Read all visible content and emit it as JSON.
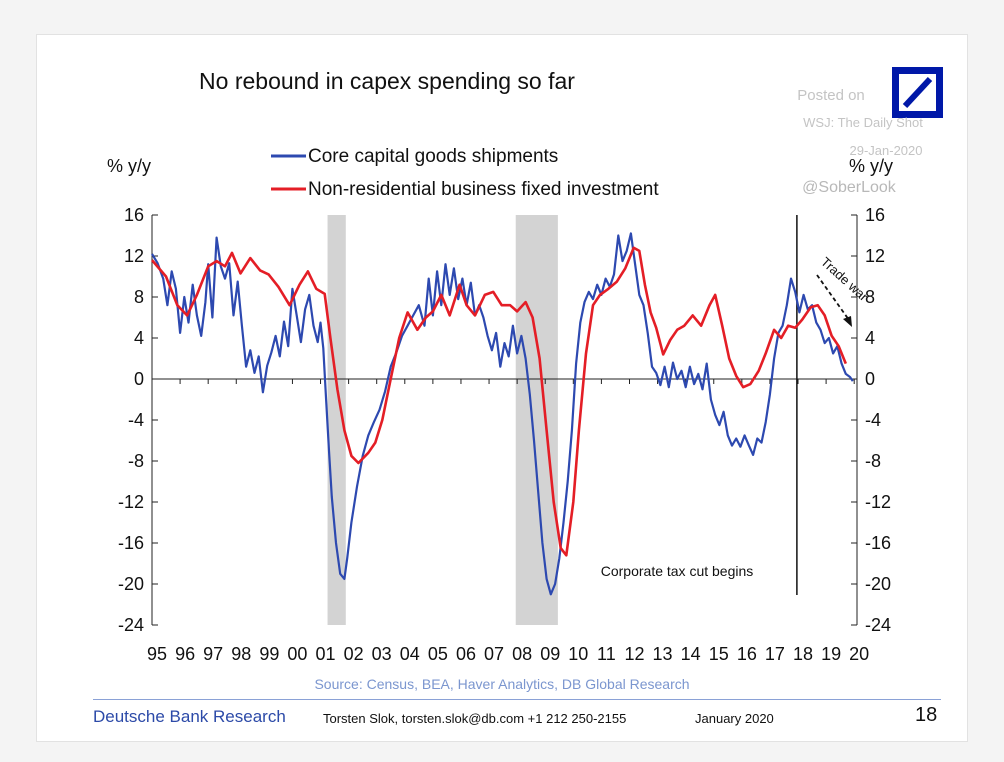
{
  "chart_data": {
    "type": "line",
    "title": "No rebound in capex spending so far",
    "ylabel_left": "% y/y",
    "ylabel_right": "% y/y",
    "ylim": [
      -24,
      16
    ],
    "yticks": [
      16,
      12,
      8,
      4,
      0,
      -4,
      -8,
      -12,
      -16,
      -20,
      -24
    ],
    "xlim": [
      1995,
      2020.1
    ],
    "xtick_labels": [
      "95",
      "96",
      "97",
      "98",
      "99",
      "00",
      "01",
      "02",
      "03",
      "04",
      "05",
      "06",
      "07",
      "08",
      "09",
      "10",
      "11",
      "12",
      "13",
      "14",
      "15",
      "16",
      "17",
      "18",
      "19",
      "20"
    ],
    "recessions": [
      [
        2001.25,
        2001.9
      ],
      [
        2007.95,
        2009.45
      ]
    ],
    "series": [
      {
        "name": "Core capital goods shipments",
        "color": "#2d49b0",
        "points": [
          [
            1995.0,
            12.2
          ],
          [
            1995.2,
            11.3
          ],
          [
            1995.4,
            9.8
          ],
          [
            1995.55,
            7.2
          ],
          [
            1995.7,
            10.5
          ],
          [
            1995.85,
            8.8
          ],
          [
            1996.0,
            4.5
          ],
          [
            1996.15,
            8.0
          ],
          [
            1996.3,
            5.5
          ],
          [
            1996.45,
            9.2
          ],
          [
            1996.6,
            6.2
          ],
          [
            1996.75,
            4.2
          ],
          [
            1996.9,
            7.5
          ],
          [
            1997.0,
            11.2
          ],
          [
            1997.15,
            6.0
          ],
          [
            1997.3,
            13.8
          ],
          [
            1997.45,
            11.0
          ],
          [
            1997.6,
            9.8
          ],
          [
            1997.75,
            11.3
          ],
          [
            1997.9,
            6.2
          ],
          [
            1998.05,
            9.5
          ],
          [
            1998.2,
            5.2
          ],
          [
            1998.35,
            1.2
          ],
          [
            1998.5,
            2.8
          ],
          [
            1998.65,
            0.6
          ],
          [
            1998.8,
            2.2
          ],
          [
            1998.95,
            -1.3
          ],
          [
            1999.1,
            1.3
          ],
          [
            1999.25,
            2.6
          ],
          [
            1999.4,
            4.2
          ],
          [
            1999.55,
            2.2
          ],
          [
            1999.7,
            5.6
          ],
          [
            1999.85,
            3.2
          ],
          [
            2000.0,
            8.8
          ],
          [
            2000.15,
            6.2
          ],
          [
            2000.3,
            3.6
          ],
          [
            2000.45,
            6.8
          ],
          [
            2000.6,
            8.2
          ],
          [
            2000.75,
            5.2
          ],
          [
            2000.9,
            3.6
          ],
          [
            2001.0,
            5.5
          ],
          [
            2001.1,
            3.0
          ],
          [
            2001.2,
            -2.0
          ],
          [
            2001.3,
            -7.0
          ],
          [
            2001.4,
            -11.5
          ],
          [
            2001.55,
            -16.0
          ],
          [
            2001.7,
            -19.0
          ],
          [
            2001.85,
            -19.5
          ],
          [
            2001.95,
            -17.5
          ],
          [
            2002.1,
            -14.0
          ],
          [
            2002.3,
            -10.5
          ],
          [
            2002.5,
            -7.5
          ],
          [
            2002.7,
            -5.5
          ],
          [
            2002.9,
            -4.2
          ],
          [
            2003.1,
            -3.0
          ],
          [
            2003.3,
            -1.2
          ],
          [
            2003.5,
            1.2
          ],
          [
            2003.7,
            2.6
          ],
          [
            2003.9,
            4.2
          ],
          [
            2004.1,
            5.2
          ],
          [
            2004.3,
            6.2
          ],
          [
            2004.5,
            7.2
          ],
          [
            2004.7,
            5.2
          ],
          [
            2004.85,
            9.8
          ],
          [
            2005.0,
            6.2
          ],
          [
            2005.15,
            10.5
          ],
          [
            2005.3,
            7.2
          ],
          [
            2005.45,
            11.2
          ],
          [
            2005.6,
            8.2
          ],
          [
            2005.75,
            10.8
          ],
          [
            2005.9,
            7.8
          ],
          [
            2006.05,
            9.8
          ],
          [
            2006.2,
            7.2
          ],
          [
            2006.35,
            9.4
          ],
          [
            2006.5,
            6.2
          ],
          [
            2006.65,
            7.2
          ],
          [
            2006.8,
            6.0
          ],
          [
            2006.95,
            4.2
          ],
          [
            2007.1,
            2.8
          ],
          [
            2007.25,
            4.5
          ],
          [
            2007.4,
            1.2
          ],
          [
            2007.55,
            3.5
          ],
          [
            2007.7,
            2.2
          ],
          [
            2007.85,
            5.2
          ],
          [
            2008.0,
            2.5
          ],
          [
            2008.15,
            4.2
          ],
          [
            2008.3,
            2.0
          ],
          [
            2008.45,
            -1.5
          ],
          [
            2008.6,
            -6.0
          ],
          [
            2008.75,
            -11.0
          ],
          [
            2008.9,
            -16.0
          ],
          [
            2009.05,
            -19.5
          ],
          [
            2009.2,
            -21.0
          ],
          [
            2009.35,
            -20.0
          ],
          [
            2009.5,
            -17.5
          ],
          [
            2009.65,
            -14.0
          ],
          [
            2009.8,
            -10.0
          ],
          [
            2009.95,
            -5.0
          ],
          [
            2010.1,
            1.5
          ],
          [
            2010.25,
            5.5
          ],
          [
            2010.4,
            7.5
          ],
          [
            2010.55,
            8.5
          ],
          [
            2010.7,
            7.8
          ],
          [
            2010.85,
            9.2
          ],
          [
            2011.0,
            8.2
          ],
          [
            2011.15,
            9.8
          ],
          [
            2011.3,
            9.0
          ],
          [
            2011.45,
            10.2
          ],
          [
            2011.6,
            14.0
          ],
          [
            2011.75,
            11.5
          ],
          [
            2011.9,
            12.5
          ],
          [
            2012.05,
            14.2
          ],
          [
            2012.2,
            11.2
          ],
          [
            2012.35,
            8.2
          ],
          [
            2012.5,
            7.2
          ],
          [
            2012.65,
            4.5
          ],
          [
            2012.8,
            1.2
          ],
          [
            2012.95,
            0.6
          ],
          [
            2013.1,
            -0.6
          ],
          [
            2013.25,
            1.2
          ],
          [
            2013.4,
            -0.8
          ],
          [
            2013.55,
            1.6
          ],
          [
            2013.7,
            0.0
          ],
          [
            2013.85,
            0.8
          ],
          [
            2014.0,
            -0.8
          ],
          [
            2014.15,
            1.2
          ],
          [
            2014.3,
            -0.5
          ],
          [
            2014.45,
            0.5
          ],
          [
            2014.6,
            -1.0
          ],
          [
            2014.75,
            1.5
          ],
          [
            2014.9,
            -2.0
          ],
          [
            2015.05,
            -3.5
          ],
          [
            2015.2,
            -4.5
          ],
          [
            2015.35,
            -3.2
          ],
          [
            2015.5,
            -5.5
          ],
          [
            2015.65,
            -6.5
          ],
          [
            2015.8,
            -5.8
          ],
          [
            2015.95,
            -6.6
          ],
          [
            2016.1,
            -5.5
          ],
          [
            2016.25,
            -6.5
          ],
          [
            2016.4,
            -7.4
          ],
          [
            2016.55,
            -5.8
          ],
          [
            2016.7,
            -6.2
          ],
          [
            2016.85,
            -4.2
          ],
          [
            2017.0,
            -1.5
          ],
          [
            2017.15,
            2.0
          ],
          [
            2017.3,
            4.5
          ],
          [
            2017.45,
            5.2
          ],
          [
            2017.6,
            7.2
          ],
          [
            2017.75,
            9.8
          ],
          [
            2017.9,
            8.5
          ],
          [
            2018.05,
            6.5
          ],
          [
            2018.2,
            8.2
          ],
          [
            2018.35,
            6.8
          ],
          [
            2018.5,
            7.2
          ],
          [
            2018.65,
            5.5
          ],
          [
            2018.8,
            4.8
          ],
          [
            2018.95,
            3.5
          ],
          [
            2019.1,
            4.0
          ],
          [
            2019.25,
            2.5
          ],
          [
            2019.4,
            3.2
          ],
          [
            2019.55,
            1.5
          ],
          [
            2019.7,
            0.5
          ],
          [
            2019.85,
            0.2
          ],
          [
            2019.95,
            -0.2
          ]
        ]
      },
      {
        "name": "Non-residential business fixed investment",
        "color": "#e41e26",
        "points": [
          [
            1995.0,
            11.6
          ],
          [
            1995.5,
            10.0
          ],
          [
            1995.9,
            7.2
          ],
          [
            1996.25,
            6.2
          ],
          [
            1996.6,
            8.2
          ],
          [
            1997.0,
            11.0
          ],
          [
            1997.3,
            11.5
          ],
          [
            1997.6,
            11.0
          ],
          [
            1997.85,
            12.3
          ],
          [
            1998.15,
            10.3
          ],
          [
            1998.5,
            11.8
          ],
          [
            1998.85,
            10.6
          ],
          [
            1999.15,
            10.2
          ],
          [
            1999.5,
            9.0
          ],
          [
            1999.9,
            7.2
          ],
          [
            2000.25,
            9.2
          ],
          [
            2000.55,
            10.5
          ],
          [
            2000.85,
            8.8
          ],
          [
            2001.15,
            8.3
          ],
          [
            2001.35,
            4.0
          ],
          [
            2001.6,
            -1.0
          ],
          [
            2001.85,
            -5.0
          ],
          [
            2002.1,
            -7.5
          ],
          [
            2002.35,
            -8.2
          ],
          [
            2002.7,
            -7.2
          ],
          [
            2002.95,
            -6.2
          ],
          [
            2003.2,
            -4.0
          ],
          [
            2003.5,
            0.0
          ],
          [
            2003.8,
            4.0
          ],
          [
            2004.1,
            6.5
          ],
          [
            2004.45,
            4.8
          ],
          [
            2004.75,
            6.0
          ],
          [
            2005.0,
            6.6
          ],
          [
            2005.3,
            8.2
          ],
          [
            2005.6,
            6.2
          ],
          [
            2005.95,
            9.2
          ],
          [
            2006.2,
            7.2
          ],
          [
            2006.5,
            6.2
          ],
          [
            2006.85,
            8.2
          ],
          [
            2007.15,
            8.5
          ],
          [
            2007.45,
            7.2
          ],
          [
            2007.75,
            7.2
          ],
          [
            2008.0,
            6.6
          ],
          [
            2008.3,
            7.5
          ],
          [
            2008.55,
            6.0
          ],
          [
            2008.8,
            2.0
          ],
          [
            2009.05,
            -5.0
          ],
          [
            2009.3,
            -12.0
          ],
          [
            2009.55,
            -16.5
          ],
          [
            2009.75,
            -17.2
          ],
          [
            2010.0,
            -12.0
          ],
          [
            2010.2,
            -5.0
          ],
          [
            2010.45,
            2.5
          ],
          [
            2010.7,
            7.2
          ],
          [
            2010.95,
            8.2
          ],
          [
            2011.25,
            8.8
          ],
          [
            2011.55,
            9.5
          ],
          [
            2011.85,
            10.8
          ],
          [
            2012.15,
            12.8
          ],
          [
            2012.35,
            12.5
          ],
          [
            2012.55,
            9.2
          ],
          [
            2012.75,
            6.5
          ],
          [
            2012.95,
            5.0
          ],
          [
            2013.2,
            2.4
          ],
          [
            2013.45,
            3.8
          ],
          [
            2013.7,
            4.8
          ],
          [
            2013.95,
            5.2
          ],
          [
            2014.25,
            6.2
          ],
          [
            2014.55,
            5.2
          ],
          [
            2014.85,
            7.2
          ],
          [
            2015.05,
            8.2
          ],
          [
            2015.3,
            5.2
          ],
          [
            2015.55,
            2.0
          ],
          [
            2015.8,
            0.3
          ],
          [
            2016.05,
            -0.8
          ],
          [
            2016.3,
            -0.5
          ],
          [
            2016.6,
            0.8
          ],
          [
            2016.85,
            2.5
          ],
          [
            2017.15,
            4.8
          ],
          [
            2017.4,
            4.0
          ],
          [
            2017.65,
            5.2
          ],
          [
            2017.9,
            5.0
          ],
          [
            2018.15,
            5.8
          ],
          [
            2018.45,
            7.0
          ],
          [
            2018.7,
            7.2
          ],
          [
            2018.95,
            6.2
          ],
          [
            2019.2,
            4.2
          ],
          [
            2019.45,
            3.2
          ],
          [
            2019.7,
            1.5
          ]
        ]
      }
    ],
    "annotations": {
      "tax_cut_text": "Corporate tax cut begins",
      "trade_war_text": "Trade war",
      "vertical_line_x": 2017.96
    }
  },
  "watermark": {
    "line1": "Posted on",
    "line2": "WSJ: The Daily Shot",
    "line3": "29-Jan-2020",
    "line4": "@SoberLook"
  },
  "colors": {
    "brand": "#2c4aa8",
    "source": "#7b96cf",
    "recession": "#d3d3d3"
  },
  "footer": {
    "source": "Source: Census, BEA, Haver Analytics, DB Global Research",
    "brand": "Deutsche Bank Research",
    "author": "Torsten Slok, torsten.slok@db.com  +1 212 250-2155",
    "date": "January 2020",
    "page": "18"
  }
}
